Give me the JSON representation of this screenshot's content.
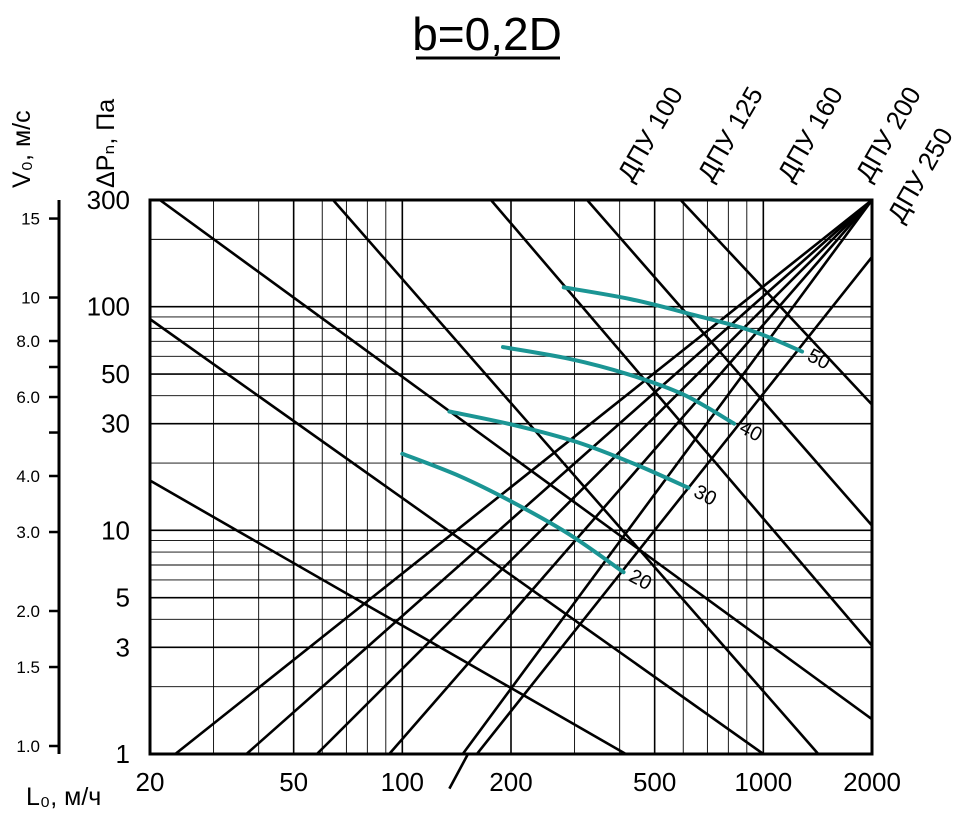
{
  "title": "b=0,2D",
  "chart_data": {
    "type": "line",
    "title": "b=0,2D",
    "x_axis": {
      "label": "L₀, м/ч",
      "scale": "log",
      "range": [
        20,
        2000
      ],
      "ticks": [
        {
          "value": 20,
          "label": "20"
        },
        {
          "value": 50,
          "label": "50"
        },
        {
          "value": 100,
          "label": "100"
        },
        {
          "value": 200,
          "label": "200"
        },
        {
          "value": 500,
          "label": "500"
        },
        {
          "value": 1000,
          "label": "1000"
        },
        {
          "value": 2000,
          "label": "2000"
        }
      ]
    },
    "y_axis": {
      "label": "ΔPₙ, Па",
      "scale": "log",
      "range": [
        1,
        300
      ],
      "ticks": [
        {
          "value": 300,
          "label": "300"
        },
        {
          "value": 100,
          "label": "100"
        },
        {
          "value": 50,
          "label": "50"
        },
        {
          "value": 30,
          "label": "30"
        },
        {
          "value": 10,
          "label": "10"
        },
        {
          "value": 5,
          "label": "5"
        },
        {
          "value": 3,
          "label": "3"
        },
        {
          "value": 1,
          "label": "1"
        }
      ]
    },
    "v_axis": {
      "label": "V₀, м/с",
      "scale": "log",
      "range": [
        1.0,
        16.5
      ],
      "ticks": [
        {
          "value": 15,
          "label": "15"
        },
        {
          "value": 10,
          "label": "10"
        },
        {
          "value": 8,
          "label": "8.0"
        },
        {
          "value": 7,
          "label": ""
        },
        {
          "value": 6,
          "label": "6.0"
        },
        {
          "value": 5,
          "label": ""
        },
        {
          "value": 4,
          "label": "4.0"
        },
        {
          "value": 3,
          "label": "3.0"
        },
        {
          "value": 2,
          "label": "2.0"
        },
        {
          "value": 1.5,
          "label": "1.5"
        },
        {
          "value": 1,
          "label": "1.0"
        }
      ]
    },
    "models": [
      "ДПУ 100",
      "ДПУ 125",
      "ДПУ 160",
      "ДПУ 200",
      "ДПУ 250"
    ],
    "pressure_lines": [
      {
        "x": [
          21.3,
          2000
        ],
        "y": [
          300,
          1.43
        ]
      },
      {
        "x": [
          64.3,
          1420
        ],
        "y": [
          300,
          1
        ]
      },
      {
        "x": [
          176,
          2000
        ],
        "y": [
          300,
          3.05
        ]
      },
      {
        "x": [
          325,
          2000
        ],
        "y": [
          300,
          10.5
        ]
      },
      {
        "x": [
          590,
          2000
        ],
        "y": [
          300,
          36.5
        ]
      },
      {
        "x": [
          20,
          1000
        ],
        "y": [
          88,
          1
        ]
      },
      {
        "x": [
          20,
          416
        ],
        "y": [
          16.7,
          1
        ]
      }
    ],
    "velocity_lines": [
      {
        "x": [
          23.5,
          2000
        ],
        "y": [
          1,
          300
        ]
      },
      {
        "x": [
          37,
          2000
        ],
        "y": [
          1,
          300
        ]
      },
      {
        "x": [
          58,
          2000
        ],
        "y": [
          1,
          300
        ]
      },
      {
        "x": [
          92,
          2000
        ],
        "y": [
          1,
          300
        ]
      },
      {
        "x": [
          147,
          2000
        ],
        "y": [
          1,
          300
        ]
      },
      {
        "x": [
          135,
          2000
        ],
        "y": [
          0.7,
          167
        ]
      }
    ],
    "series": [
      {
        "name": "20",
        "x": [
          100,
          145,
          205,
          290,
          410
        ],
        "y": [
          22,
          17.4,
          13.2,
          9.6,
          6.5
        ]
      },
      {
        "name": "30",
        "x": [
          135,
          205,
          305,
          440,
          620
        ],
        "y": [
          34,
          29.5,
          24.8,
          19.8,
          15.5
        ]
      },
      {
        "name": "40",
        "x": [
          190,
          290,
          420,
          600,
          830
        ],
        "y": [
          66,
          58.5,
          50,
          40.5,
          30
        ]
      },
      {
        "name": "50",
        "x": [
          280,
          430,
          640,
          930,
          1280
        ],
        "y": [
          122,
          108,
          92,
          78,
          63
        ]
      }
    ]
  }
}
